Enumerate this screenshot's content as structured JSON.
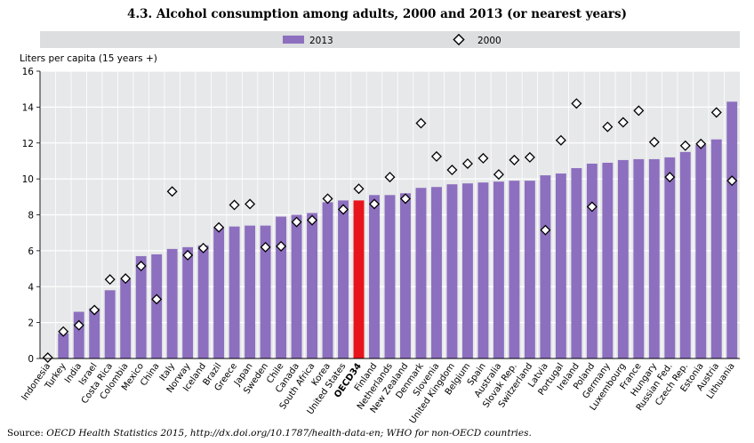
{
  "chart_data": {
    "type": "bar",
    "title": "4.3. Alcohol consumption among adults, 2000 and 2013 (or nearest years)",
    "ylabel": "Liters per capita (15 years +)",
    "ylim": [
      0,
      16
    ],
    "yticks": [
      0,
      2,
      4,
      6,
      8,
      10,
      12,
      14,
      16
    ],
    "grid": true,
    "legend": "top",
    "colors": {
      "bar": "#8d6fbf",
      "highlight": "#e8141b",
      "marker": "#000000",
      "grid": "#ffffff",
      "plot_bg": "#e6e8e9",
      "legend_bg": "#dcdedf"
    },
    "categories": [
      "Indonesia",
      "Turkey",
      "India",
      "Israel",
      "Costa Rica",
      "Colombia",
      "Mexico",
      "China",
      "Italy",
      "Norway",
      "Iceland",
      "Brazil",
      "Greece",
      "Japan",
      "Sweden",
      "Chile",
      "Canada",
      "South Africa",
      "Korea",
      "United States",
      "OECD34",
      "Finland",
      "Netherlands",
      "New Zealand",
      "Denmark",
      "Slovenia",
      "United Kingdom",
      "Belgium",
      "Spain",
      "Australia",
      "Slovak Rep.",
      "Switzerland",
      "Latvia",
      "Portugal",
      "Ireland",
      "Poland",
      "Germany",
      "Luxembourg",
      "France",
      "Hungary",
      "Russian Fed.",
      "Czech Rep.",
      "Estonia",
      "Austria",
      "Lithuania"
    ],
    "highlight_category": "OECD34",
    "series": [
      {
        "name": "2013",
        "kind": "bar",
        "values": [
          0.0,
          1.4,
          2.6,
          2.8,
          3.8,
          4.4,
          5.7,
          5.8,
          6.1,
          6.2,
          6.3,
          7.3,
          7.35,
          7.4,
          7.4,
          7.9,
          8.0,
          8.1,
          8.7,
          8.8,
          8.8,
          9.1,
          9.1,
          9.2,
          9.5,
          9.55,
          9.7,
          9.75,
          9.8,
          9.85,
          9.9,
          9.9,
          10.2,
          10.3,
          10.6,
          10.85,
          10.9,
          11.05,
          11.1,
          11.1,
          11.2,
          11.5,
          11.9,
          12.2,
          14.3
        ]
      },
      {
        "name": "2000",
        "kind": "marker",
        "values": [
          0.05,
          1.5,
          1.85,
          2.7,
          4.4,
          4.45,
          5.15,
          3.3,
          9.3,
          5.75,
          6.15,
          7.3,
          8.55,
          8.6,
          6.2,
          6.25,
          7.6,
          7.7,
          8.9,
          8.3,
          9.45,
          8.6,
          10.1,
          8.9,
          13.1,
          11.25,
          10.5,
          10.85,
          11.15,
          10.25,
          11.05,
          11.2,
          7.15,
          12.15,
          14.2,
          8.45,
          12.9,
          13.15,
          13.8,
          12.05,
          10.1,
          11.85,
          11.95,
          13.7,
          9.9
        ]
      }
    ]
  },
  "footer": {
    "source_prefix": "Source:  ",
    "source_text": "OECD Health Statistics 2015, http://dx.doi.org/10.1787/health-data-en; WHO for non-OECD countries."
  }
}
